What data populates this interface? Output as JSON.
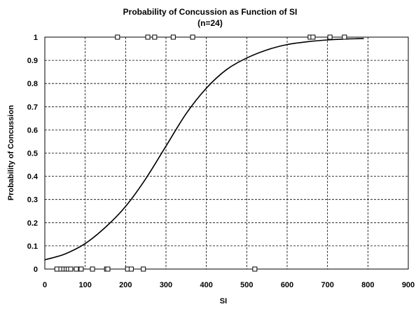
{
  "chart_data": {
    "type": "scatter",
    "title": "Probability of Concussion as Function of SI",
    "subtitle": "(n=24)",
    "xlabel": "SI",
    "ylabel": "Probability of Concussion",
    "xlim": [
      0,
      900
    ],
    "ylim": [
      0,
      1
    ],
    "grid": true,
    "xticks": [
      "0",
      "100",
      "200",
      "300",
      "400",
      "500",
      "600",
      "700",
      "800",
      "900"
    ],
    "yticks": [
      "0",
      "0.1",
      "0.2",
      "0.3",
      "0.4",
      "0.5",
      "0.6",
      "0.7",
      "0.8",
      "0.9",
      "1"
    ],
    "series": [
      {
        "type": "scatter",
        "marker": "open-square",
        "points": [
          {
            "x": 30,
            "y": 0
          },
          {
            "x": 40,
            "y": 0
          },
          {
            "x": 47,
            "y": 0
          },
          {
            "x": 53,
            "y": 0
          },
          {
            "x": 58,
            "y": 0
          },
          {
            "x": 64,
            "y": 0
          },
          {
            "x": 78,
            "y": 0
          },
          {
            "x": 90,
            "y": 0
          },
          {
            "x": 118,
            "y": 0
          },
          {
            "x": 153,
            "y": 0
          },
          {
            "x": 156,
            "y": 0
          },
          {
            "x": 205,
            "y": 0
          },
          {
            "x": 214,
            "y": 0
          },
          {
            "x": 244,
            "y": 0
          },
          {
            "x": 520,
            "y": 0
          },
          {
            "x": 180,
            "y": 1
          },
          {
            "x": 255,
            "y": 1
          },
          {
            "x": 272,
            "y": 1
          },
          {
            "x": 318,
            "y": 1
          },
          {
            "x": 366,
            "y": 1
          },
          {
            "x": 657,
            "y": 1
          },
          {
            "x": 664,
            "y": 1
          },
          {
            "x": 706,
            "y": 1
          },
          {
            "x": 742,
            "y": 1
          }
        ]
      },
      {
        "type": "line",
        "points": [
          {
            "x": 0,
            "y": 0.04
          },
          {
            "x": 50,
            "y": 0.065
          },
          {
            "x": 100,
            "y": 0.11
          },
          {
            "x": 150,
            "y": 0.18
          },
          {
            "x": 200,
            "y": 0.27
          },
          {
            "x": 250,
            "y": 0.39
          },
          {
            "x": 300,
            "y": 0.53
          },
          {
            "x": 350,
            "y": 0.67
          },
          {
            "x": 400,
            "y": 0.78
          },
          {
            "x": 450,
            "y": 0.86
          },
          {
            "x": 500,
            "y": 0.91
          },
          {
            "x": 550,
            "y": 0.945
          },
          {
            "x": 600,
            "y": 0.968
          },
          {
            "x": 650,
            "y": 0.98
          },
          {
            "x": 700,
            "y": 0.988
          },
          {
            "x": 750,
            "y": 0.992
          },
          {
            "x": 790,
            "y": 0.994
          }
        ]
      }
    ]
  }
}
